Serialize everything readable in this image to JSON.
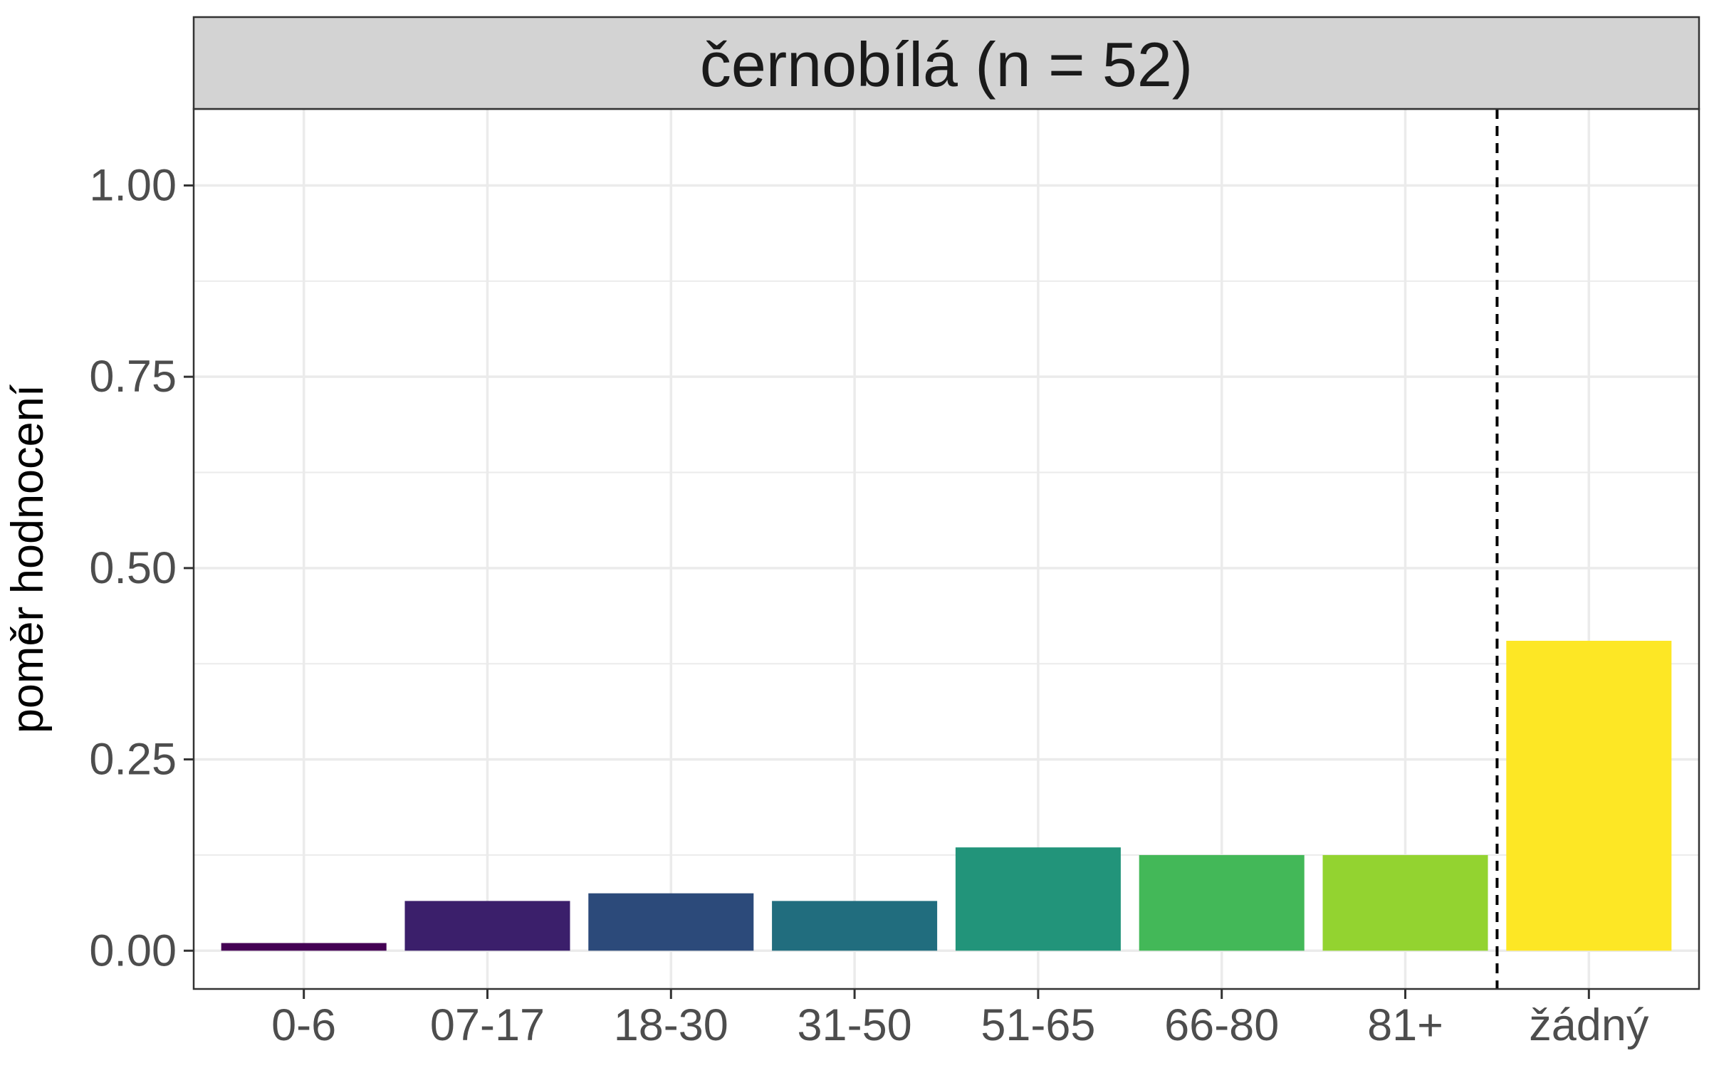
{
  "chart_data": {
    "type": "bar",
    "facet_label": "černobílá (n = 52)",
    "ylabel": "poměr hodnocení",
    "xlabel": "",
    "categories": [
      "0-6",
      "07-17",
      "18-30",
      "31-50",
      "51-65",
      "66-80",
      "81+",
      "žádný"
    ],
    "values": [
      0.01,
      0.065,
      0.075,
      0.065,
      0.135,
      0.125,
      0.125,
      0.405
    ],
    "colors": [
      "#440154",
      "#3b1f6b",
      "#2c4a7a",
      "#216d7e",
      "#22947a",
      "#43b858",
      "#93d330",
      "#fde725"
    ],
    "ylim": [
      -0.05,
      1.1
    ],
    "yticks": [
      0.0,
      0.25,
      0.5,
      0.75,
      1.0
    ],
    "ytick_labels": [
      "0.00",
      "0.25",
      "0.50",
      "0.75",
      "1.00"
    ],
    "reference_line": {
      "between": [
        "81+",
        "žádný"
      ],
      "style": "dashed",
      "color": "#000000"
    },
    "grid": true,
    "legend": "none"
  }
}
